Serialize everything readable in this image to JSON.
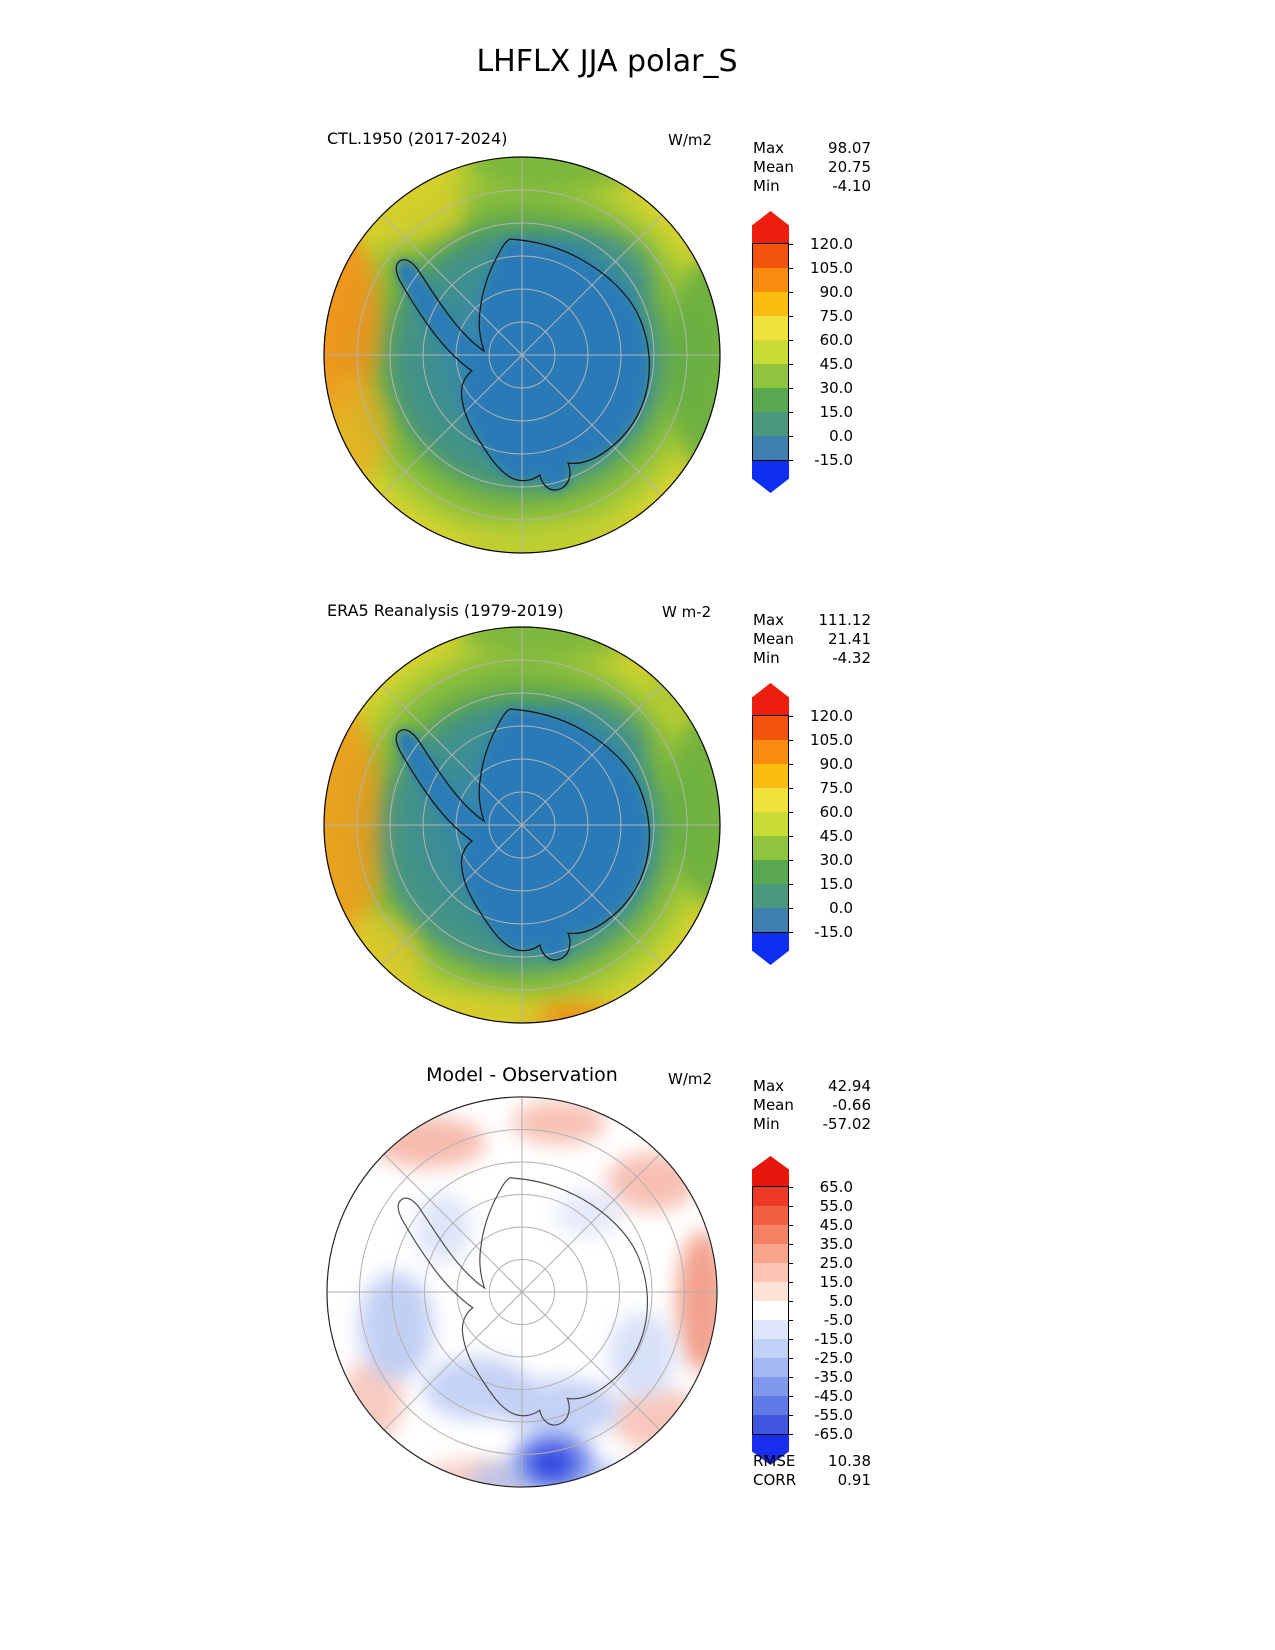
{
  "title": "LHFLX JJA polar_S",
  "panels": [
    {
      "title": "CTL.1950 (2017-2024)",
      "units": "W/m2",
      "stats": {
        "max_label": "Max",
        "max_value": "98.07",
        "mean_label": "Mean",
        "mean_value": "20.75",
        "min_label": "Min",
        "min_value": "-4.10"
      },
      "colorbar": {
        "ticks": [
          "120.0",
          "105.0",
          "90.0",
          "75.0",
          "60.0",
          "45.0",
          "30.0",
          "15.0",
          "0.0",
          "-15.0"
        ],
        "segment_colors": [
          "#f4530e",
          "#fb8b0e",
          "#fdbd10",
          "#f0e13c",
          "#c8dc34",
          "#90c43e",
          "#57a84e",
          "#49987c",
          "#3d7fae"
        ],
        "arrow_top_color": "#ec1f0e",
        "arrow_bottom_color": "#0d2ff2"
      }
    },
    {
      "title": "ERA5 Reanalysis (1979-2019)",
      "units": "W m-2",
      "stats": {
        "max_label": "Max",
        "max_value": "111.12",
        "mean_label": "Mean",
        "mean_value": "21.41",
        "min_label": "Min",
        "min_value": "-4.32"
      },
      "colorbar": {
        "ticks": [
          "120.0",
          "105.0",
          "90.0",
          "75.0",
          "60.0",
          "45.0",
          "30.0",
          "15.0",
          "0.0",
          "-15.0"
        ],
        "segment_colors": [
          "#f4530e",
          "#fb8b0e",
          "#fdbd10",
          "#f0e13c",
          "#c8dc34",
          "#90c43e",
          "#57a84e",
          "#49987c",
          "#3d7fae"
        ],
        "arrow_top_color": "#ec1f0e",
        "arrow_bottom_color": "#0d2ff2"
      }
    },
    {
      "title": "Model - Observation",
      "units": "W/m2",
      "stats": {
        "max_label": "Max",
        "max_value": "42.94",
        "mean_label": "Mean",
        "mean_value": "-0.66",
        "min_label": "Min",
        "min_value": "-57.02"
      },
      "colorbar": {
        "ticks": [
          "65.0",
          "55.0",
          "45.0",
          "35.0",
          "25.0",
          "15.0",
          "5.0",
          "-5.0",
          "-15.0",
          "-25.0",
          "-35.0",
          "-45.0",
          "-55.0",
          "-65.0"
        ],
        "segment_colors": [
          "#ee3a24",
          "#f25f43",
          "#f58265",
          "#f8a58c",
          "#fbc4b3",
          "#fde2d8",
          "#ffffff",
          "#dde6fa",
          "#c2d1f7",
          "#a3b8f2",
          "#8098ec",
          "#5f7ae6",
          "#3f57e0"
        ],
        "arrow_top_color": "#e5170b",
        "arrow_bottom_color": "#1a2ef0"
      }
    }
  ],
  "diff_metrics": {
    "rmse_label": "RMSE",
    "rmse_value": "10.38",
    "corr_label": "CORR",
    "corr_value": "0.91"
  },
  "chart_data": [
    {
      "type": "heatmap",
      "subtype": "south_polar_stereographic_map",
      "variable": "LHFLX",
      "season": "JJA",
      "region": "polar_S",
      "title": "CTL.1950 (2017-2024)",
      "units": "W/m2",
      "contour_levels": [
        -15,
        0,
        15,
        30,
        45,
        60,
        75,
        90,
        105,
        120
      ],
      "palette": "rainbow_blue_to_red",
      "stats": {
        "max": 98.07,
        "mean": 20.75,
        "min": -4.1
      }
    },
    {
      "type": "heatmap",
      "subtype": "south_polar_stereographic_map",
      "variable": "LHFLX",
      "season": "JJA",
      "region": "polar_S",
      "title": "ERA5 Reanalysis (1979-2019)",
      "units": "W m-2",
      "contour_levels": [
        -15,
        0,
        15,
        30,
        45,
        60,
        75,
        90,
        105,
        120
      ],
      "palette": "rainbow_blue_to_red",
      "stats": {
        "max": 111.12,
        "mean": 21.41,
        "min": -4.32
      }
    },
    {
      "type": "heatmap",
      "subtype": "south_polar_stereographic_map",
      "variable": "LHFLX",
      "season": "JJA",
      "region": "polar_S",
      "title": "Model - Observation",
      "units": "W/m2",
      "contour_levels": [
        -65,
        -55,
        -45,
        -35,
        -25,
        -15,
        -5,
        5,
        15,
        25,
        35,
        45,
        55,
        65
      ],
      "palette": "blue_white_red_diverging",
      "stats": {
        "max": 42.94,
        "mean": -0.66,
        "min": -57.02
      },
      "rmse": 10.38,
      "corr": 0.91
    }
  ]
}
